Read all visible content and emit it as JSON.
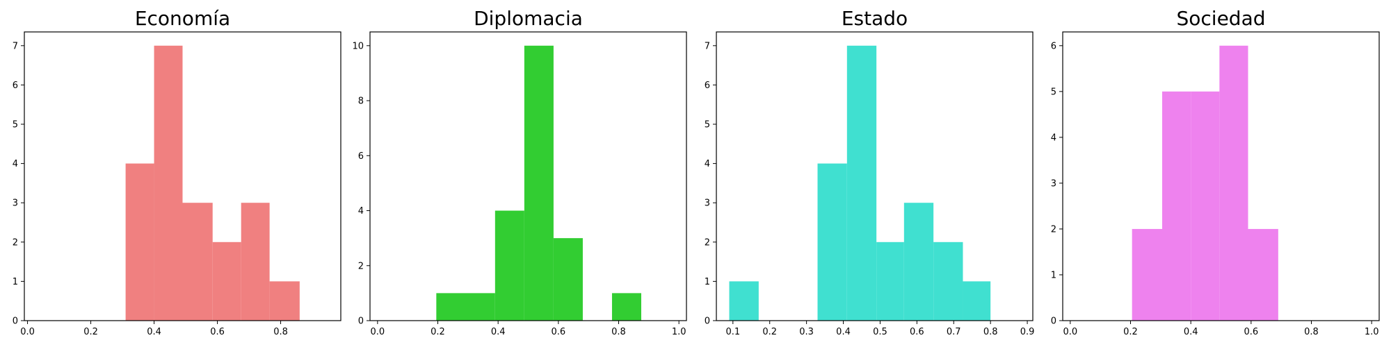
{
  "chart_data": [
    {
      "type": "bar",
      "title": "Economía",
      "color": "#F08080",
      "bin_edges": [
        0.31,
        0.4,
        0.49,
        0.585,
        0.675,
        0.765,
        0.86
      ],
      "values": [
        4,
        7,
        3,
        2,
        3,
        1
      ],
      "xlim": [
        -0.01,
        0.99
      ],
      "ylim": [
        0,
        7.35
      ],
      "xticks": [
        0.0,
        0.2,
        0.4,
        0.6,
        0.8
      ],
      "xtick_labels": [
        "0.0",
        "0.2",
        "0.4",
        "0.6",
        "0.8"
      ],
      "yticks": [
        0,
        1,
        2,
        3,
        4,
        5,
        6,
        7
      ],
      "ytick_labels": [
        "0",
        "1",
        "2",
        "3",
        "4",
        "5",
        "6",
        "7"
      ]
    },
    {
      "type": "bar",
      "title": "Diplomacia",
      "color": "#32CD32",
      "bin_edges": [
        0.195,
        0.39,
        0.487,
        0.584,
        0.681,
        0.778,
        0.875
      ],
      "values": [
        1,
        4,
        10,
        3,
        0,
        1
      ],
      "xlim": [
        -0.025,
        1.025
      ],
      "ylim": [
        0,
        10.5
      ],
      "xticks": [
        0.0,
        0.2,
        0.4,
        0.6,
        0.8,
        1.0
      ],
      "xtick_labels": [
        "0.0",
        "0.2",
        "0.4",
        "0.6",
        "0.8",
        "1.0"
      ],
      "yticks": [
        0,
        2,
        4,
        6,
        8,
        10
      ],
      "ytick_labels": [
        "0",
        "2",
        "4",
        "6",
        "8",
        "10"
      ]
    },
    {
      "type": "bar",
      "title": "Estado",
      "color": "#40E0D0",
      "bin_edges": [
        0.09,
        0.17,
        0.33,
        0.41,
        0.49,
        0.565,
        0.645,
        0.725,
        0.8
      ],
      "values": [
        1,
        0,
        4,
        7,
        2,
        3,
        2,
        1
      ],
      "xlim": [
        0.055,
        0.915
      ],
      "ylim": [
        0,
        7.35
      ],
      "xticks": [
        0.1,
        0.2,
        0.3,
        0.4,
        0.5,
        0.6,
        0.7,
        0.8,
        0.9
      ],
      "xtick_labels": [
        "0.1",
        "0.2",
        "0.3",
        "0.4",
        "0.5",
        "0.6",
        "0.7",
        "0.8",
        "0.9"
      ],
      "yticks": [
        0,
        1,
        2,
        3,
        4,
        5,
        6,
        7
      ],
      "ytick_labels": [
        "0",
        "1",
        "2",
        "3",
        "4",
        "5",
        "6",
        "7"
      ]
    },
    {
      "type": "bar",
      "title": "Sociedad",
      "color": "#EE82EE",
      "bin_edges": [
        0.205,
        0.305,
        0.4,
        0.495,
        0.59,
        0.69
      ],
      "values": [
        2,
        5,
        5,
        6,
        2
      ],
      "xlim": [
        -0.025,
        1.025
      ],
      "ylim": [
        0,
        6.3
      ],
      "xticks": [
        0.0,
        0.2,
        0.4,
        0.6,
        0.8,
        1.0
      ],
      "xtick_labels": [
        "0.0",
        "0.2",
        "0.4",
        "0.6",
        "0.8",
        "1.0"
      ],
      "yticks": [
        0,
        1,
        2,
        3,
        4,
        5,
        6
      ],
      "ytick_labels": [
        "0",
        "1",
        "2",
        "3",
        "4",
        "5",
        "6"
      ]
    }
  ]
}
